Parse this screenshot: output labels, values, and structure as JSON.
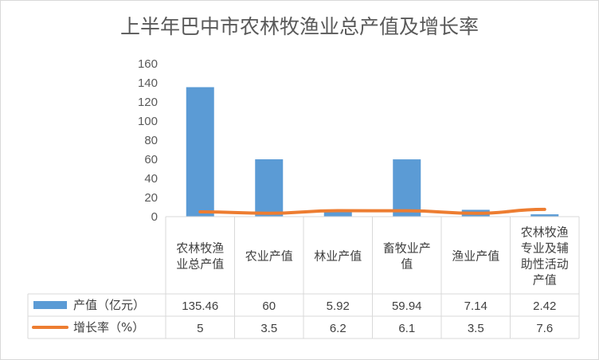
{
  "chart_data": {
    "type": "bar",
    "title": "上半年巴中市农林牧渔业总产值及增长率",
    "categories": [
      "农林牧渔业总产值",
      "农业产值",
      "林业产值",
      "畜牧业产值",
      "渔业产值",
      "农林牧渔专业及辅助性活动产值"
    ],
    "category_lines": [
      [
        "农林牧渔",
        "业总产值"
      ],
      [
        "农业产值"
      ],
      [
        "林业产值"
      ],
      [
        "畜牧业产",
        "值"
      ],
      [
        "渔业产值"
      ],
      [
        "农林牧渔",
        "专业及辅",
        "助性活动",
        "产值"
      ]
    ],
    "series": [
      {
        "name": "产值（亿元）",
        "type": "bar",
        "color": "#5b9bd5",
        "values": [
          135.46,
          60,
          5.92,
          59.94,
          7.14,
          2.42
        ],
        "labels": [
          "135.46",
          "60",
          "5.92",
          "59.94",
          "7.14",
          "2.42"
        ]
      },
      {
        "name": "增长率（%）",
        "type": "line",
        "color": "#ed7d31",
        "values": [
          5,
          3.5,
          6.2,
          6.1,
          3.5,
          7.6
        ],
        "labels": [
          "5",
          "3.5",
          "6.2",
          "6.1",
          "3.5",
          "7.6"
        ]
      }
    ],
    "yticks": [
      0,
      20,
      40,
      60,
      80,
      100,
      120,
      140,
      160
    ],
    "ylim": [
      0,
      160
    ],
    "xlabel": "",
    "ylabel": "",
    "grid": false,
    "legend": "data-table"
  }
}
